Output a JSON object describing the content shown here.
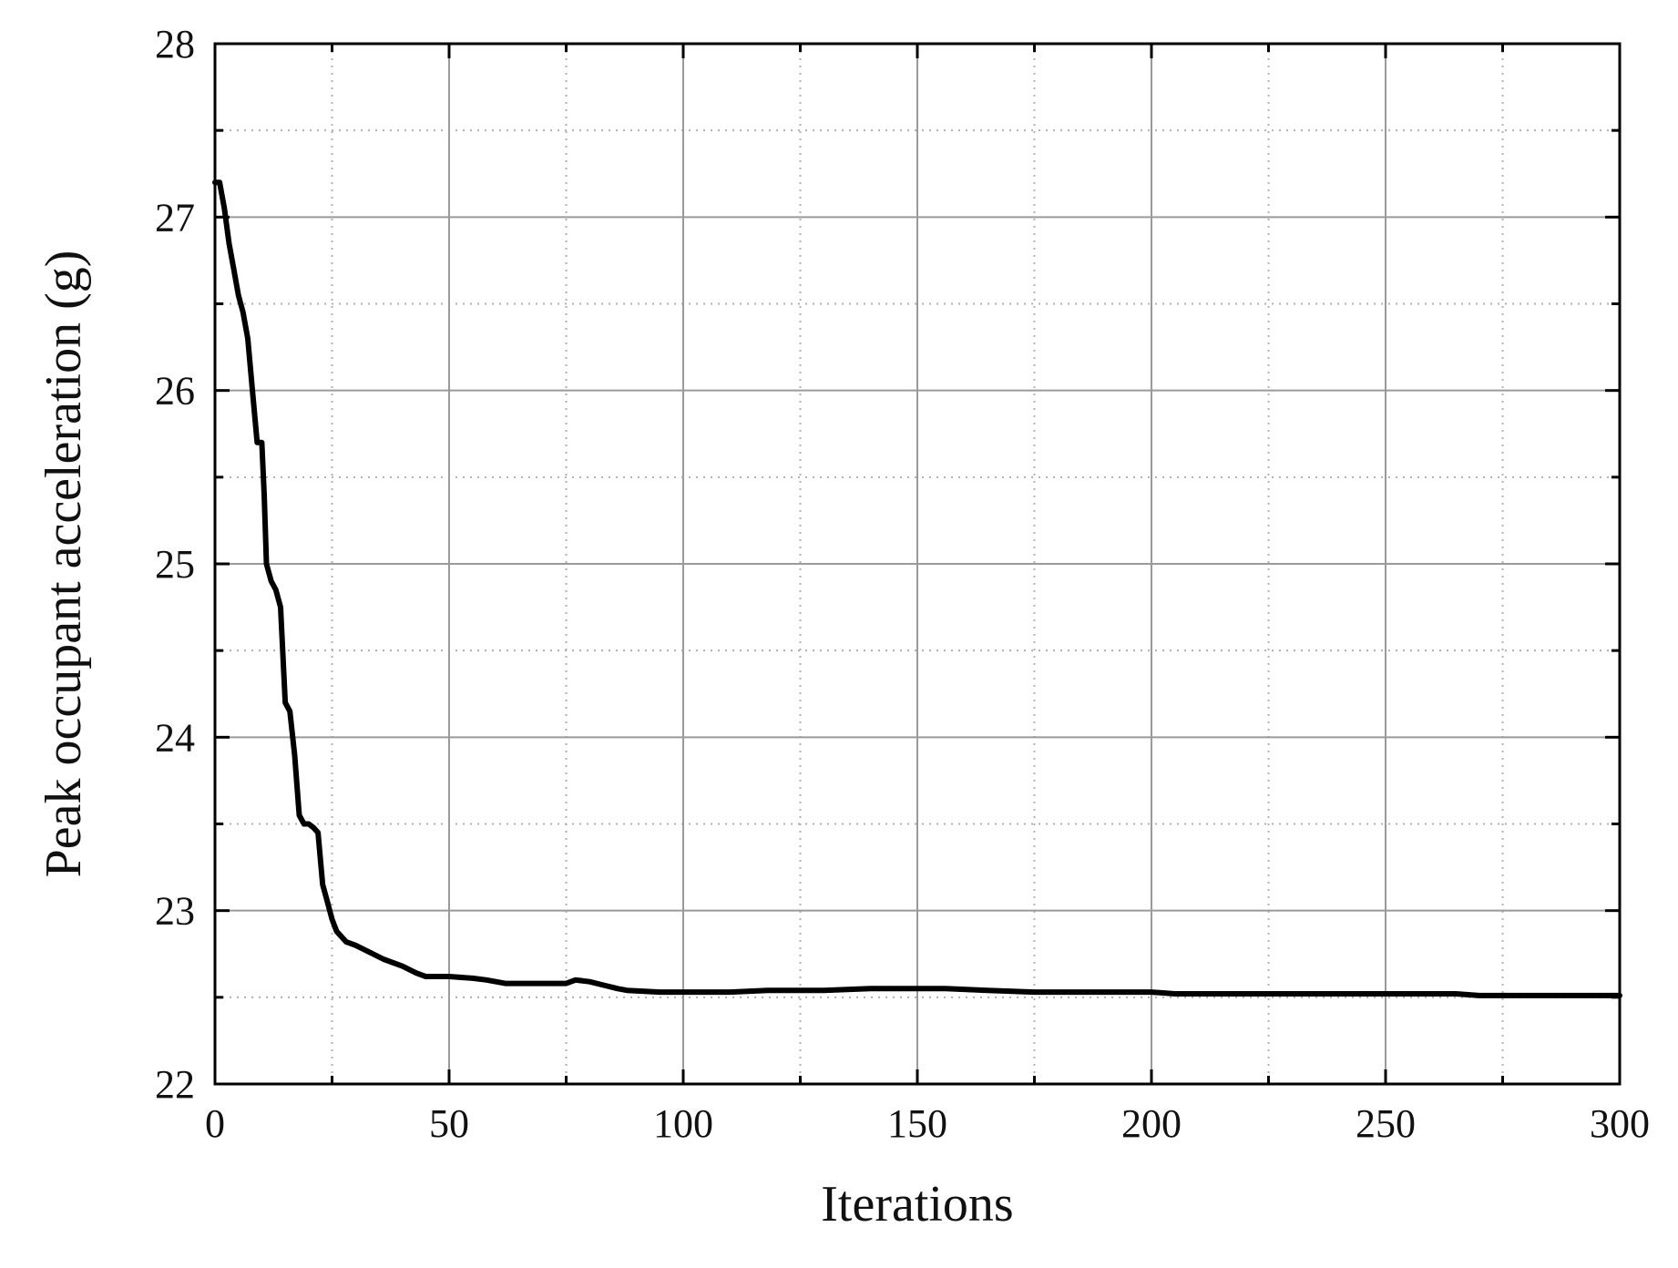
{
  "chart_data": {
    "type": "line",
    "title": "",
    "xlabel": "Iterations",
    "ylabel": "Peak occupant acceleration (g)",
    "xlim": [
      0,
      300
    ],
    "ylim": [
      22,
      28
    ],
    "x_major_ticks": [
      0,
      50,
      100,
      150,
      200,
      250,
      300
    ],
    "x_minor_ticks": [
      25,
      75,
      125,
      175,
      225,
      275
    ],
    "y_major_ticks": [
      22,
      23,
      24,
      25,
      26,
      27,
      28
    ],
    "y_minor_ticks": [
      22.5,
      23.5,
      24.5,
      25.5,
      26.5,
      27.5
    ],
    "x_tick_labels": [
      "0",
      "50",
      "100",
      "150",
      "200",
      "250",
      "300"
    ],
    "y_tick_labels": [
      "22",
      "23",
      "24",
      "25",
      "26",
      "27",
      "28"
    ],
    "grid": true,
    "line_color": "#000000",
    "series": [
      {
        "points": [
          [
            0,
            27.2
          ],
          [
            1,
            27.2
          ],
          [
            2,
            27.05
          ],
          [
            3,
            26.85
          ],
          [
            4,
            26.7
          ],
          [
            5,
            26.55
          ],
          [
            6,
            26.45
          ],
          [
            7,
            26.3
          ],
          [
            8,
            26.0
          ],
          [
            9,
            25.7
          ],
          [
            10,
            25.7
          ],
          [
            10.5,
            25.4
          ],
          [
            11,
            25.0
          ],
          [
            12,
            24.9
          ],
          [
            13,
            24.85
          ],
          [
            14,
            24.75
          ],
          [
            15,
            24.2
          ],
          [
            16,
            24.15
          ],
          [
            17,
            23.9
          ],
          [
            18,
            23.55
          ],
          [
            19,
            23.5
          ],
          [
            20,
            23.5
          ],
          [
            21,
            23.48
          ],
          [
            22,
            23.45
          ],
          [
            23,
            23.15
          ],
          [
            24,
            23.05
          ],
          [
            25,
            22.95
          ],
          [
            26,
            22.88
          ],
          [
            27,
            22.85
          ],
          [
            28,
            22.82
          ],
          [
            30,
            22.8
          ],
          [
            33,
            22.76
          ],
          [
            36,
            22.72
          ],
          [
            40,
            22.68
          ],
          [
            43,
            22.64
          ],
          [
            45,
            22.62
          ],
          [
            50,
            22.62
          ],
          [
            55,
            22.61
          ],
          [
            58,
            22.6
          ],
          [
            62,
            22.58
          ],
          [
            70,
            22.58
          ],
          [
            75,
            22.58
          ],
          [
            77,
            22.6
          ],
          [
            80,
            22.59
          ],
          [
            83,
            22.57
          ],
          [
            86,
            22.55
          ],
          [
            88,
            22.54
          ],
          [
            95,
            22.53
          ],
          [
            110,
            22.53
          ],
          [
            118,
            22.54
          ],
          [
            130,
            22.54
          ],
          [
            140,
            22.55
          ],
          [
            150,
            22.55
          ],
          [
            156,
            22.55
          ],
          [
            165,
            22.54
          ],
          [
            175,
            22.53
          ],
          [
            200,
            22.53
          ],
          [
            205,
            22.52
          ],
          [
            220,
            22.52
          ],
          [
            265,
            22.52
          ],
          [
            270,
            22.51
          ],
          [
            300,
            22.51
          ]
        ]
      }
    ]
  }
}
